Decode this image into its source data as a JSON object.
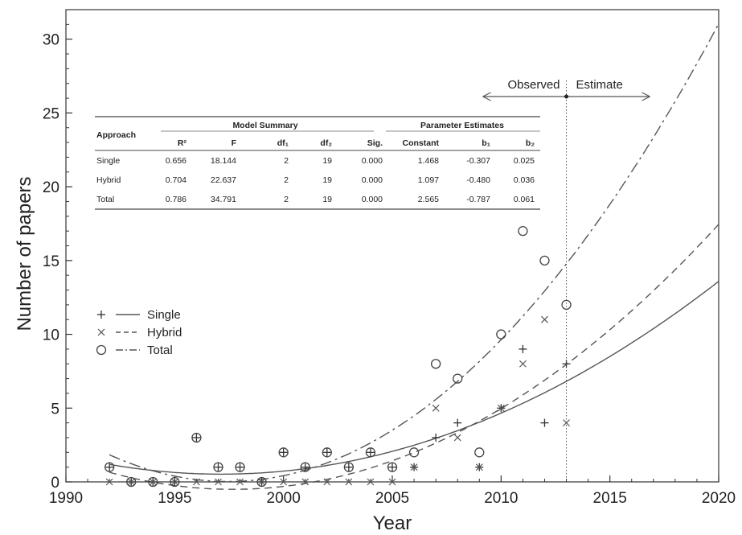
{
  "chart_data": {
    "type": "scatter",
    "xlabel": "Year",
    "ylabel": "Number of papers",
    "xlim": [
      1990,
      2020
    ],
    "ylim": [
      0,
      32
    ],
    "x_ticks": [
      1990,
      1995,
      2000,
      2005,
      2010,
      2015,
      2020
    ],
    "y_ticks": [
      0,
      5,
      10,
      15,
      20,
      25,
      30
    ],
    "grid": false,
    "legend_position": "middle-left",
    "series": [
      {
        "name": "Single",
        "marker": "plus",
        "line_style": "solid",
        "points": [
          [
            1992,
            1
          ],
          [
            1993,
            0
          ],
          [
            1994,
            0
          ],
          [
            1995,
            0
          ],
          [
            1996,
            3
          ],
          [
            1997,
            1
          ],
          [
            1998,
            1
          ],
          [
            1999,
            0
          ],
          [
            2000,
            2
          ],
          [
            2001,
            1
          ],
          [
            2002,
            2
          ],
          [
            2003,
            1
          ],
          [
            2004,
            2
          ],
          [
            2005,
            1
          ],
          [
            2006,
            1
          ],
          [
            2007,
            3
          ],
          [
            2008,
            4
          ],
          [
            2009,
            1
          ],
          [
            2010,
            5
          ],
          [
            2011,
            9
          ],
          [
            2012,
            4
          ],
          [
            2013,
            8
          ]
        ],
        "fit": {
          "constant": 1.468,
          "b1": -0.307,
          "b2": 0.025
        }
      },
      {
        "name": "Hybrid",
        "marker": "cross",
        "line_style": "dashed",
        "points": [
          [
            1992,
            0
          ],
          [
            1993,
            0
          ],
          [
            1994,
            0
          ],
          [
            1995,
            0
          ],
          [
            1996,
            0
          ],
          [
            1997,
            0
          ],
          [
            1998,
            0
          ],
          [
            1999,
            0
          ],
          [
            2000,
            0
          ],
          [
            2001,
            0
          ],
          [
            2002,
            0
          ],
          [
            2003,
            0
          ],
          [
            2004,
            0
          ],
          [
            2005,
            0
          ],
          [
            2006,
            1
          ],
          [
            2007,
            5
          ],
          [
            2008,
            3
          ],
          [
            2009,
            1
          ],
          [
            2010,
            5
          ],
          [
            2011,
            8
          ],
          [
            2012,
            11
          ],
          [
            2013,
            4
          ]
        ],
        "fit": {
          "constant": 1.097,
          "b1": -0.48,
          "b2": 0.036
        }
      },
      {
        "name": "Total",
        "marker": "circle",
        "line_style": "dash-dot",
        "points": [
          [
            1992,
            1
          ],
          [
            1993,
            0
          ],
          [
            1994,
            0
          ],
          [
            1995,
            0
          ],
          [
            1996,
            3
          ],
          [
            1997,
            1
          ],
          [
            1998,
            1
          ],
          [
            1999,
            0
          ],
          [
            2000,
            2
          ],
          [
            2001,
            1
          ],
          [
            2002,
            2
          ],
          [
            2003,
            1
          ],
          [
            2004,
            2
          ],
          [
            2005,
            1
          ],
          [
            2006,
            2
          ],
          [
            2007,
            8
          ],
          [
            2008,
            7
          ],
          [
            2009,
            2
          ],
          [
            2010,
            10
          ],
          [
            2011,
            17
          ],
          [
            2012,
            15
          ],
          [
            2013,
            12
          ]
        ],
        "fit": {
          "constant": 2.565,
          "b1": -0.787,
          "b2": 0.061
        }
      }
    ],
    "fit_base_year": 1991,
    "vline_x": 2013,
    "annotations": {
      "observed": "Observed",
      "estimate": "Estimate"
    },
    "table": {
      "approach_header": "Approach",
      "group_headers": [
        "Model Summary",
        "Parameter Estimates"
      ],
      "columns": [
        "R²",
        "F",
        "df₁",
        "df₂",
        "Sig.",
        "Constant",
        "b₁",
        "b₂"
      ],
      "rows": [
        {
          "approach": "Single",
          "values": [
            "0.656",
            "18.144",
            "2",
            "19",
            "0.000",
            "1.468",
            "-0.307",
            "0.025"
          ]
        },
        {
          "approach": "Hybrid",
          "values": [
            "0.704",
            "22.637",
            "2",
            "19",
            "0.000",
            "1.097",
            "-0.480",
            "0.036"
          ]
        },
        {
          "approach": "Total",
          "values": [
            "0.786",
            "34.791",
            "2",
            "19",
            "0.000",
            "2.565",
            "-0.787",
            "0.061"
          ]
        }
      ]
    }
  }
}
